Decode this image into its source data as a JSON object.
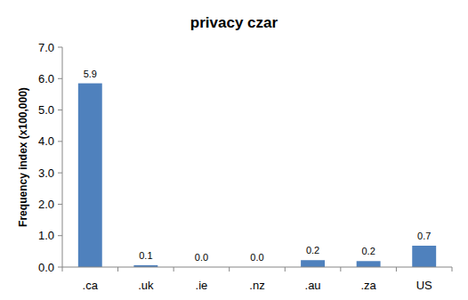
{
  "chart_data": {
    "type": "bar",
    "title": "privacy czar",
    "y_label": "Frequency index (x100,000)",
    "categories": [
      ".ca",
      ".uk",
      ".ie",
      ".nz",
      ".au",
      ".za",
      "US"
    ],
    "values": [
      5.85,
      0.06,
      0,
      0,
      0.22,
      0.19,
      0.68
    ],
    "value_labels": [
      "5.9",
      "0.1",
      "0.0",
      "0.0",
      "0.2",
      "0.2",
      "0.7"
    ],
    "data_labels": true,
    "color": "#4f81bd",
    "ylim": [
      0,
      7
    ],
    "yticks": [
      {
        "value": 0,
        "label": "0.0"
      },
      {
        "value": 1,
        "label": "1.0"
      },
      {
        "value": 2,
        "label": "2.0"
      },
      {
        "value": 3,
        "label": "3.0"
      },
      {
        "value": 4,
        "label": "4.0"
      },
      {
        "value": 5,
        "label": "5.0"
      },
      {
        "value": 6,
        "label": "6.0"
      },
      {
        "value": 7,
        "label": "7.0"
      }
    ],
    "grid": false
  }
}
